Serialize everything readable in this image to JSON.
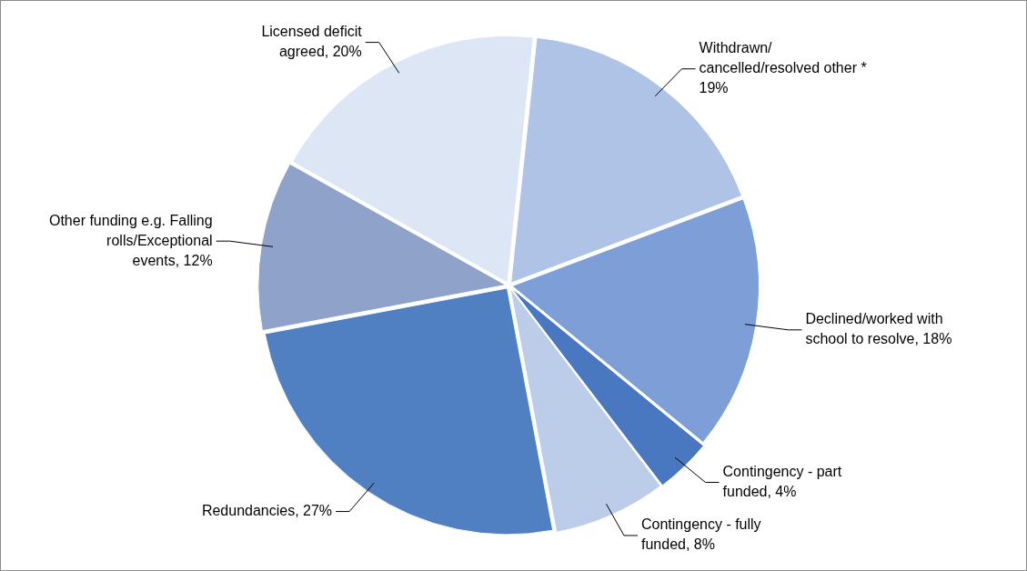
{
  "chart_data": {
    "type": "pie",
    "categories": [
      "Withdrawn/ cancelled/resolved other *",
      "Declined/worked with school to resolve",
      "Contingency - part funded",
      "Contingency - fully funded",
      "Redundancies",
      "Other funding e.g. Falling rolls/Exceptional events",
      "Licensed deficit agreed"
    ],
    "value_labels": [
      "19%",
      "18%",
      "4%",
      "8%",
      "27%",
      "12%",
      "20%"
    ],
    "values": [
      19,
      18,
      4,
      8,
      27,
      12,
      20
    ],
    "colors": [
      "#aec3e6",
      "#7d9ed6",
      "#4a78c0",
      "#bccdea",
      "#5080c2",
      "#8fa2c9",
      "#dde6f4"
    ],
    "legend": false
  }
}
